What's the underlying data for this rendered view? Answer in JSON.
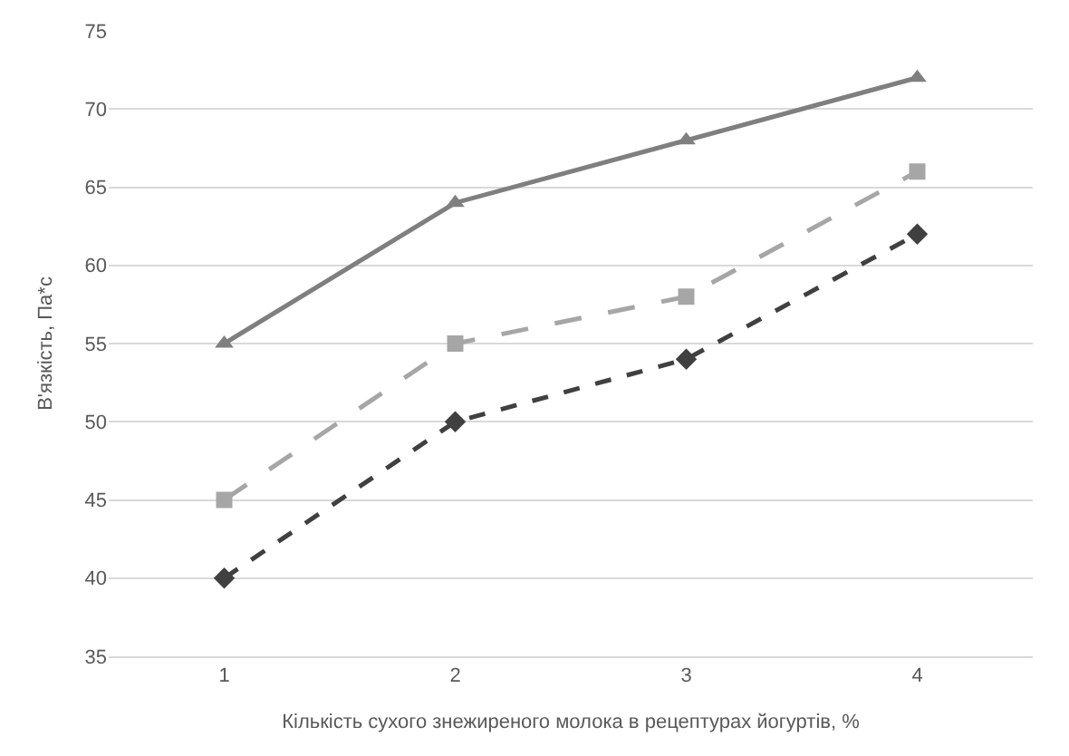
{
  "chart_data": {
    "type": "line",
    "xlabel": "Кількість сухого знежиреного молока в рецептурах йогуртів, %",
    "ylabel": "В'язкість, Па*с",
    "categories": [
      "1",
      "2",
      "3",
      "4"
    ],
    "series": [
      {
        "color": "#404040",
        "values": [
          40,
          50,
          54,
          62
        ],
        "marker": "diamond",
        "line_style": "dotted"
      },
      {
        "color": "#a6a6a6",
        "values": [
          45,
          55,
          58,
          66
        ],
        "marker": "square",
        "line_style": "dashed"
      },
      {
        "color": "#7f7f7f",
        "values": [
          55,
          64,
          68,
          72
        ],
        "marker": "triangle",
        "line_style": "solid"
      }
    ],
    "ylim": [
      35,
      75
    ],
    "yticks": [
      35,
      40,
      45,
      50,
      55,
      60,
      65,
      70,
      75
    ],
    "grid": "y"
  }
}
